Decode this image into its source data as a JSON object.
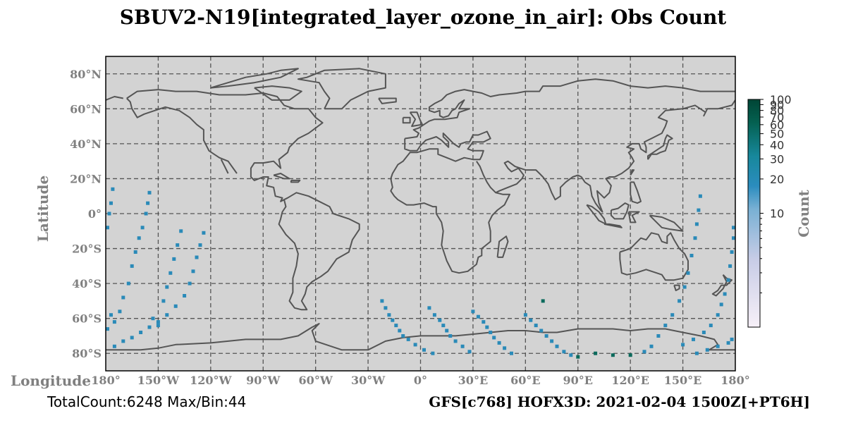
{
  "title": "SBUV2-N19[integrated_layer_ozone_in_air]: Obs Count",
  "axes": {
    "ylabel": "Latitude",
    "xlabel": "Longitude",
    "lon_ticks": [
      "180°",
      "150°W",
      "120°W",
      "90°W",
      "60°W",
      "30°W",
      "0°",
      "30°E",
      "60°E",
      "90°E",
      "120°E",
      "150°E",
      "180°"
    ],
    "lat_ticks": [
      "80°N",
      "60°N",
      "40°N",
      "20°N",
      "0°",
      "20°S",
      "40°S",
      "60°S",
      "80°S"
    ],
    "lon_range": [
      -180,
      180
    ],
    "lat_range": [
      -90,
      90
    ],
    "grid": "dashed"
  },
  "colorbar": {
    "title": "Count",
    "tick_labels": [
      "100",
      "90",
      "80",
      "70",
      "60",
      "50",
      "40",
      "30",
      "20",
      "10"
    ],
    "range": [
      1,
      100
    ],
    "scale": "log",
    "colors": [
      "#f7f0f8",
      "#c7cce6",
      "#78b0d4",
      "#2b8cbe",
      "#17889c",
      "#046050",
      "#004535"
    ]
  },
  "footer": {
    "left": "TotalCount:6248 Max/Bin:44",
    "right": "GFS[c768] HOFX3D: 2021-02-04 1500Z[+PT6H]"
  },
  "colors": {
    "ocean": "#d3d3d3",
    "coast": "#555555",
    "bin_main": "#2a8ab8",
    "bin_dark": "#0c6a5c"
  },
  "chart_data": {
    "type": "heatmap",
    "title": "SBUV2-N19[integrated_layer_ozone_in_air]: Obs Count",
    "xlabel": "Longitude",
    "ylabel": "Latitude",
    "xlim": [
      -180,
      180
    ],
    "ylim": [
      -90,
      90
    ],
    "bin_size_deg": 2,
    "value_label": "Count",
    "max_per_bin": 44,
    "total_count": 6248,
    "tracks": [
      {
        "name": "",
        "points": [
          [
            -179,
            -8
          ],
          [
            -178,
            0
          ],
          [
            -177,
            6
          ],
          [
            -176,
            14
          ],
          [
            -177,
            -58
          ],
          [
            -179,
            -66
          ],
          [
            -175,
            -62
          ],
          [
            -172,
            -56
          ],
          [
            -170,
            -48
          ],
          [
            -167,
            -40
          ],
          [
            -165,
            -30
          ],
          [
            -163,
            -22
          ],
          [
            -161,
            -14
          ],
          [
            -159,
            -8
          ],
          [
            -157,
            0
          ],
          [
            -156,
            6
          ],
          [
            -155,
            12
          ]
        ]
      },
      {
        "name": "",
        "points": [
          [
            -153,
            -60
          ],
          [
            -150,
            -64
          ],
          [
            -147,
            -50
          ],
          [
            -145,
            -42
          ],
          [
            -143,
            -34
          ],
          [
            -141,
            -26
          ],
          [
            -139,
            -18
          ],
          [
            -137,
            -10
          ]
        ]
      },
      {
        "name": "",
        "points": [
          [
            -175,
            -76
          ],
          [
            -170,
            -73
          ],
          [
            -165,
            -71
          ],
          [
            -160,
            -68
          ],
          [
            -155,
            -65
          ],
          [
            -150,
            -62
          ],
          [
            -145,
            -58
          ],
          [
            -140,
            -53
          ],
          [
            -135,
            -47
          ],
          [
            -132,
            -40
          ],
          [
            -130,
            -33
          ],
          [
            -128,
            -25
          ],
          [
            -126,
            -18
          ],
          [
            -124,
            -11
          ]
        ]
      },
      {
        "name": "",
        "points": [
          [
            -22,
            -50
          ],
          [
            -20,
            -54
          ],
          [
            -18,
            -58
          ],
          [
            -16,
            -61
          ],
          [
            -14,
            -64
          ],
          [
            -12,
            -67
          ],
          [
            -10,
            -70
          ],
          [
            -7,
            -72
          ],
          [
            -3,
            -75
          ],
          [
            2,
            -78
          ],
          [
            7,
            -80
          ]
        ]
      },
      {
        "name": "",
        "points": [
          [
            5,
            -54
          ],
          [
            8,
            -58
          ],
          [
            11,
            -61
          ],
          [
            13,
            -64
          ],
          [
            15,
            -67
          ],
          [
            17,
            -70
          ],
          [
            20,
            -73
          ],
          [
            24,
            -76
          ],
          [
            28,
            -79
          ]
        ]
      },
      {
        "name": "",
        "points": [
          [
            30,
            -56
          ],
          [
            33,
            -59
          ],
          [
            36,
            -62
          ],
          [
            38,
            -65
          ],
          [
            40,
            -68
          ],
          [
            42,
            -71
          ],
          [
            45,
            -74
          ],
          [
            48,
            -77
          ],
          [
            52,
            -80
          ]
        ]
      },
      {
        "name": "",
        "points": [
          [
            60,
            -58
          ],
          [
            63,
            -61
          ],
          [
            66,
            -64
          ],
          [
            69,
            -67
          ],
          [
            72,
            -70
          ],
          [
            75,
            -73
          ],
          [
            78,
            -76
          ],
          [
            82,
            -79
          ],
          [
            86,
            -81
          ]
        ]
      },
      {
        "name": "",
        "points": [
          [
            70,
            -50
          ],
          [
            90,
            -82
          ],
          [
            100,
            -80
          ],
          [
            110,
            -81
          ],
          [
            120,
            -81
          ],
          [
            128,
            -79
          ],
          [
            132,
            -76
          ],
          [
            136,
            -70
          ],
          [
            140,
            -64
          ],
          [
            144,
            -58
          ],
          [
            148,
            -50
          ],
          [
            151,
            -42
          ],
          [
            153,
            -34
          ],
          [
            155,
            -24
          ],
          [
            157,
            -14
          ],
          [
            158,
            -6
          ],
          [
            159,
            2
          ],
          [
            160,
            10
          ]
        ]
      },
      {
        "name": "",
        "points": [
          [
            150,
            -75
          ],
          [
            156,
            -72
          ],
          [
            162,
            -68
          ],
          [
            166,
            -64
          ],
          [
            170,
            -58
          ],
          [
            172,
            -52
          ],
          [
            174,
            -46
          ],
          [
            176,
            -38
          ],
          [
            177,
            -30
          ],
          [
            178,
            -22
          ],
          [
            179,
            -14
          ],
          [
            179,
            -8
          ]
        ]
      },
      {
        "name": "",
        "points": [
          [
            158,
            -80
          ],
          [
            164,
            -78
          ],
          [
            170,
            -76
          ],
          [
            176,
            -74
          ],
          [
            178,
            -72
          ]
        ]
      }
    ]
  }
}
